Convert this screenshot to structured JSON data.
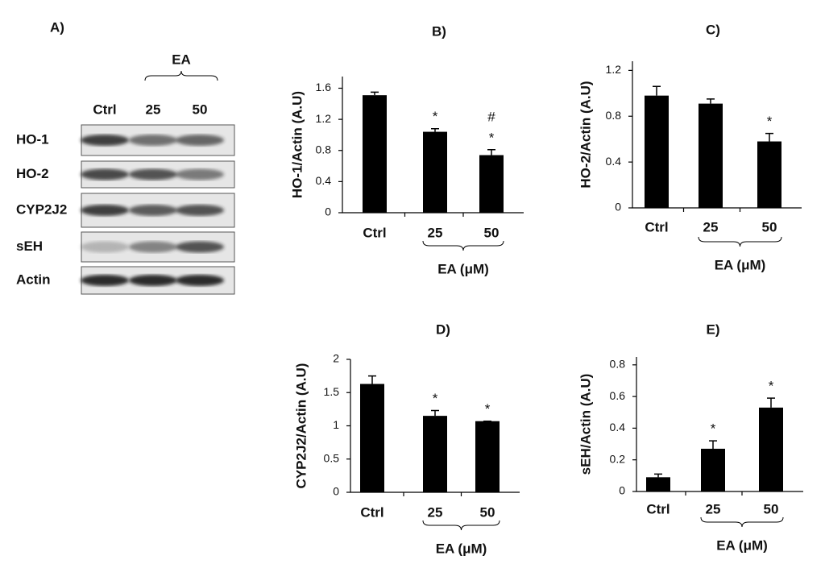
{
  "blot": {
    "label": "A)",
    "treatment": "EA",
    "lanes": [
      "Ctrl",
      "25",
      "50"
    ],
    "rows": [
      "HO-1",
      "HO-2",
      "CYP2J2",
      "sEH",
      "Actin"
    ]
  },
  "chart_data": [
    {
      "type": "bar",
      "title": "B)",
      "ylabel": "HO-1/Actin (A.U)",
      "categories": [
        "Ctrl",
        "25",
        "50"
      ],
      "values": [
        1.51,
        1.04,
        0.74
      ],
      "errors": [
        0.04,
        0.04,
        0.07
      ],
      "color": "#000000",
      "ylim": [
        0,
        1.75
      ],
      "yticks": [
        0,
        0.4,
        0.8,
        1.2,
        1.6
      ],
      "group_label": "EA (μM)",
      "annotations": [
        {
          "category": "25",
          "text": "*"
        },
        {
          "category": "50",
          "text": "*"
        },
        {
          "category": "50",
          "text": "#"
        }
      ]
    },
    {
      "type": "bar",
      "title": "C)",
      "ylabel": "HO-2/Actin (A.U)",
      "categories": [
        "Ctrl",
        "25",
        "50"
      ],
      "values": [
        0.98,
        0.91,
        0.58
      ],
      "errors": [
        0.08,
        0.04,
        0.07
      ],
      "color": "#000000",
      "ylim": [
        0,
        1.28
      ],
      "yticks": [
        0,
        0.4,
        0.8,
        1.2
      ],
      "group_label": "EA (μM)",
      "annotations": [
        {
          "category": "50",
          "text": "*"
        }
      ]
    },
    {
      "type": "bar",
      "title": "D)",
      "ylabel": "CYP2J2/Actin (A.U)",
      "categories": [
        "Ctrl",
        "25",
        "50"
      ],
      "values": [
        1.63,
        1.15,
        1.07
      ],
      "errors": [
        0.12,
        0.08,
        0
      ],
      "color": "#000000",
      "ylim": [
        0,
        2
      ],
      "yticks": [
        0,
        0.5,
        1,
        1.5,
        2
      ],
      "group_label": "EA (μM)",
      "annotations": [
        {
          "category": "25",
          "text": "*"
        },
        {
          "category": "50",
          "text": "*"
        }
      ]
    },
    {
      "type": "bar",
      "title": "E)",
      "ylabel": "sEH/Actin (A.U)",
      "categories": [
        "Ctrl",
        "25",
        "50"
      ],
      "values": [
        0.09,
        0.27,
        0.53
      ],
      "errors": [
        0.02,
        0.05,
        0.06
      ],
      "color": "#000000",
      "ylim": [
        0,
        0.85
      ],
      "yticks": [
        0,
        0.2,
        0.4,
        0.6,
        0.8
      ],
      "group_label": "EA (μM)",
      "annotations": [
        {
          "category": "25",
          "text": "*"
        },
        {
          "category": "50",
          "text": "*"
        }
      ]
    }
  ]
}
